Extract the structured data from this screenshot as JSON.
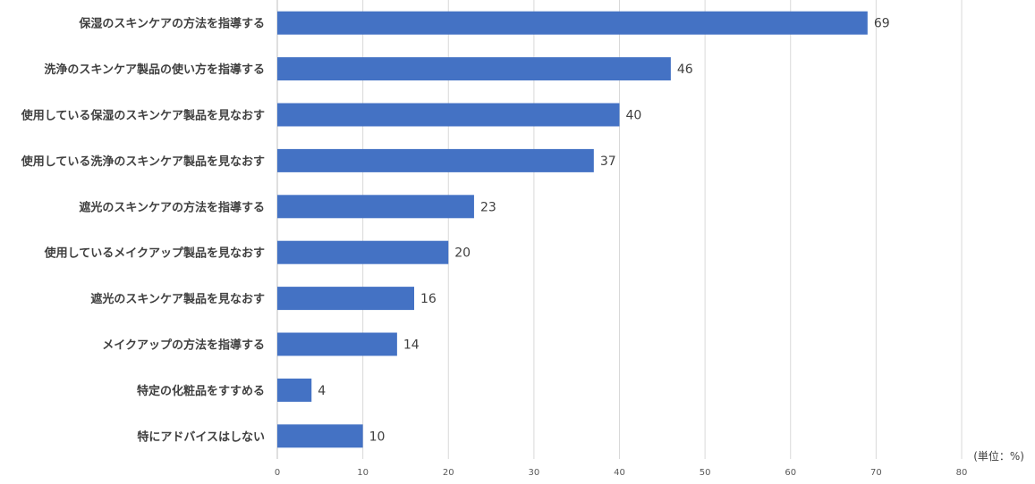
{
  "chart_data": {
    "type": "bar",
    "orientation": "horizontal",
    "categories": [
      "保湿のスキンケアの方法を指導する",
      "洗浄のスキンケア製品の使い方を指導する",
      "使用している保湿のスキンケア製品を見なおす",
      "使用している洗浄のスキンケア製品を見なおす",
      "遮光のスキンケアの方法を指導する",
      "使用しているメイクアップ製品を見なおす",
      "遮光のスキンケア製品を見なおす",
      "メイクアップの方法を指導する",
      "特定の化粧品をすすめる",
      "特にアドバイスはしない"
    ],
    "values": [
      69,
      46,
      40,
      37,
      23,
      20,
      16,
      14,
      4,
      10
    ],
    "xticks": [
      "0",
      "10",
      "20",
      "30",
      "40",
      "50",
      "60",
      "70",
      "80"
    ],
    "xlim": [
      0,
      80
    ],
    "unit_note": "(単位：%)",
    "bar_color": "#4472C4",
    "grid": true,
    "legend": "none"
  }
}
